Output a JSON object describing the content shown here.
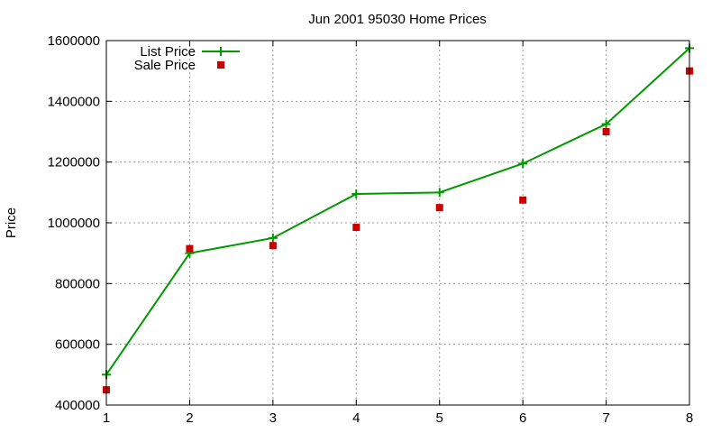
{
  "chart_data": {
    "type": "line",
    "title": "Jun 2001 95030 Home Prices",
    "xlabel": "",
    "ylabel": "Price",
    "x": [
      1,
      2,
      3,
      4,
      5,
      6,
      7,
      8
    ],
    "xlim": [
      1,
      8
    ],
    "ylim": [
      400000,
      1600000
    ],
    "xticks": [
      "1",
      "2",
      "3",
      "4",
      "5",
      "6",
      "7",
      "8"
    ],
    "yticks": [
      "400000",
      "600000",
      "800000",
      "1000000",
      "1200000",
      "1400000",
      "1600000"
    ],
    "grid": true,
    "legend_position": "top-left",
    "series": [
      {
        "name": "List Price",
        "style": "line-with-plus-markers",
        "color": "#009900",
        "values": [
          500000,
          900000,
          950000,
          1095000,
          1100000,
          1195000,
          1325000,
          1575000
        ]
      },
      {
        "name": "Sale Price",
        "style": "square-points",
        "color": "#cc0000",
        "values": [
          450000,
          915000,
          925000,
          985000,
          1050000,
          1075000,
          1300000,
          1500000
        ]
      }
    ]
  }
}
